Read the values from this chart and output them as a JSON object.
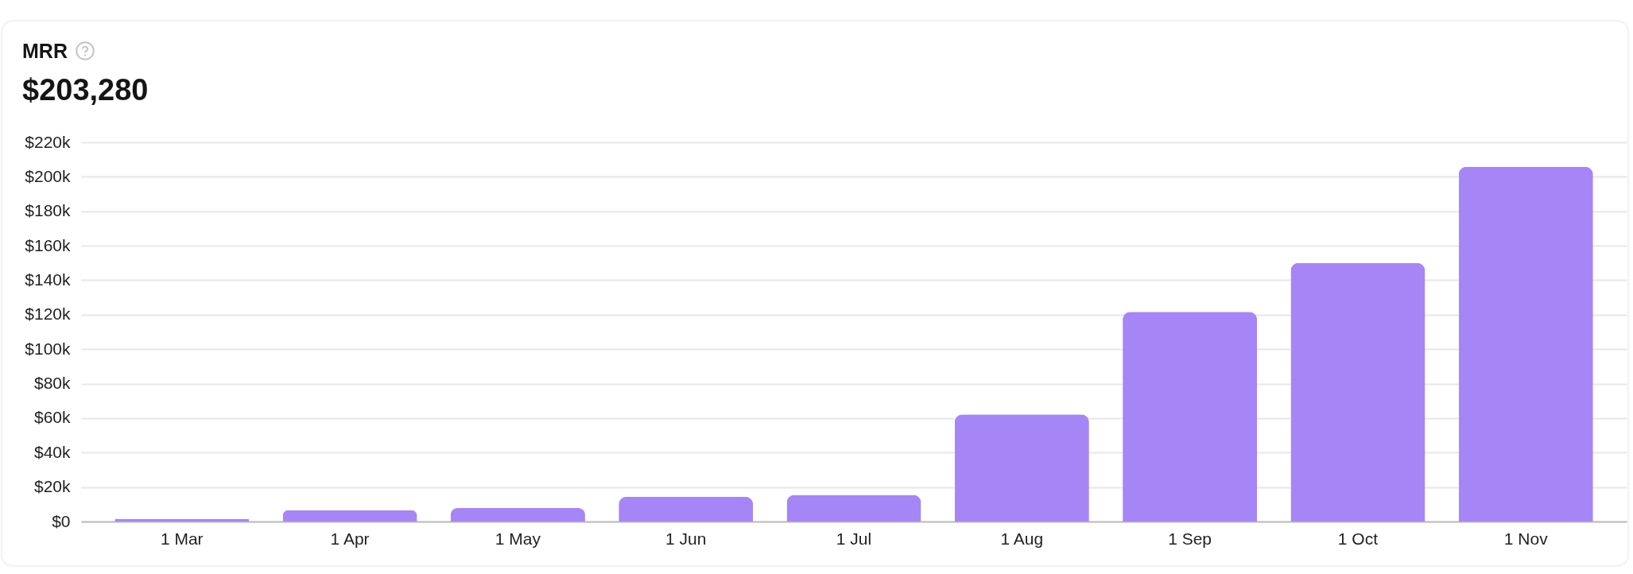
{
  "chart_data": {
    "type": "bar",
    "title": "MRR",
    "subtitle": "$203,280",
    "categories": [
      "1 Mar",
      "1 Apr",
      "1 May",
      "1 Jun",
      "1 Jul",
      "1 Aug",
      "1 Sep",
      "1 Oct",
      "1 Nov"
    ],
    "values": [
      1600,
      6600,
      7800,
      14400,
      15400,
      62200,
      121700,
      150000,
      205800
    ],
    "color": "#a686f6",
    "ylim": [
      0,
      220000
    ],
    "yticks": [
      {
        "value": 0,
        "label": "$0"
      },
      {
        "value": 20000,
        "label": "$20k"
      },
      {
        "value": 40000,
        "label": "$40k"
      },
      {
        "value": 60000,
        "label": "$60k"
      },
      {
        "value": 80000,
        "label": "$80k"
      },
      {
        "value": 100000,
        "label": "$100k"
      },
      {
        "value": 120000,
        "label": "$120k"
      },
      {
        "value": 140000,
        "label": "$140k"
      },
      {
        "value": 160000,
        "label": "$160k"
      },
      {
        "value": 180000,
        "label": "$180k"
      },
      {
        "value": 200000,
        "label": "$200k"
      },
      {
        "value": 220000,
        "label": "$220k"
      }
    ],
    "grid": "y"
  }
}
